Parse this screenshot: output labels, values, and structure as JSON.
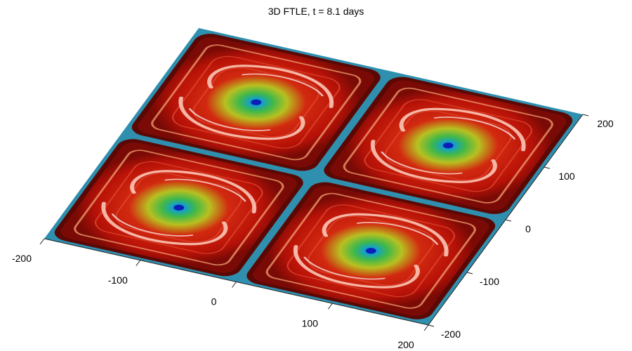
{
  "chart_data": {
    "type": "heatmap",
    "title": "3D FTLE, t = 8.1 days",
    "x_axis": {
      "range": [
        -200,
        200
      ],
      "ticks": [
        -200,
        -100,
        0,
        100,
        200
      ]
    },
    "y_axis": {
      "range": [
        -200,
        200
      ],
      "ticks": [
        -200,
        -100,
        0,
        100,
        200
      ]
    },
    "grid": false,
    "colormap": "jet",
    "cells": [
      {
        "center": [
          -100,
          -100
        ]
      },
      {
        "center": [
          -100,
          100
        ]
      },
      {
        "center": [
          100,
          -100
        ]
      },
      {
        "center": [
          100,
          100
        ]
      }
    ]
  }
}
